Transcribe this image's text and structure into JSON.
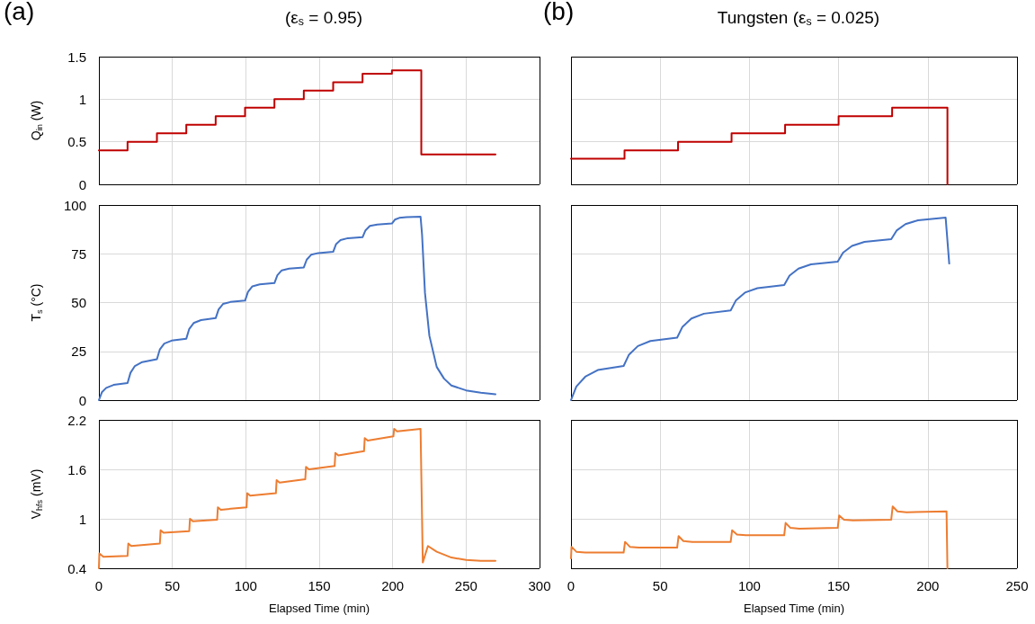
{
  "chart_data": [
    {
      "type": "step",
      "title": "(ε$_{s}$ = 0.95)",
      "annotations": [
        "(a)"
      ],
      "ylabel": "Q$_{in}$ (W)",
      "xlim": [
        0,
        300
      ],
      "xticks": [
        0,
        50,
        100,
        150,
        200,
        250,
        300
      ],
      "ylim": [
        0,
        1.5
      ],
      "yticks": [
        0,
        0.5,
        1,
        1.5
      ],
      "grid": true,
      "tick_labels": "y",
      "marker": "none",
      "series": [
        {
          "color": "#c00000",
          "x": [
            0,
            19.5,
            39.5,
            59.5,
            79.5,
            99.5,
            119.5,
            139.5,
            159.5,
            179.5,
            199.5,
            219.5,
            270
          ],
          "values": [
            0.4,
            0.5,
            0.6,
            0.7,
            0.8,
            0.9,
            1.0,
            1.1,
            1.2,
            1.3,
            1.34,
            0.35,
            0.35
          ]
        }
      ]
    },
    {
      "type": "step",
      "title": "Tungsten (ε$_{s}$ = 0.025)",
      "annotations": [
        "(b)"
      ],
      "xlim": [
        0,
        250
      ],
      "xticks": [
        0,
        50,
        100,
        150,
        200,
        250
      ],
      "ylim": [
        0,
        1.5
      ],
      "yticks": [
        0,
        0.5,
        1,
        1.5
      ],
      "grid": true,
      "tick_labels": false,
      "marker": "none",
      "series": [
        {
          "color": "#c00000",
          "x": [
            0,
            30,
            60,
            90,
            120,
            150,
            180,
            211
          ],
          "values": [
            0.3,
            0.4,
            0.5,
            0.6,
            0.7,
            0.8,
            0.9,
            0
          ]
        }
      ]
    },
    {
      "type": "line",
      "ylabel": "T$_{s}$ (°C)",
      "xlim": [
        0,
        300
      ],
      "xticks": [
        0,
        50,
        100,
        150,
        200,
        250,
        300
      ],
      "ylim": [
        0,
        100
      ],
      "yticks": [
        0,
        25,
        50,
        75,
        100
      ],
      "grid": true,
      "tick_labels": "y",
      "marker": "none",
      "series": [
        {
          "color": "#4472c4",
          "x": [
            0,
            2,
            5,
            10,
            19.5,
            21.5,
            24.5,
            29.5,
            39.5,
            41.5,
            44.5,
            49.5,
            59.5,
            61.5,
            64.5,
            69.5,
            79.5,
            81.5,
            84.5,
            89.5,
            99.5,
            101.5,
            104.5,
            109.5,
            119.5,
            121.5,
            124.5,
            129.5,
            139.5,
            141.5,
            144.5,
            149.5,
            159.5,
            161.5,
            164.5,
            169.5,
            179.5,
            181.5,
            184.5,
            189.5,
            199.5,
            201.5,
            204.5,
            209.5,
            219,
            220,
            222,
            225,
            230,
            235,
            240,
            250,
            260,
            270
          ],
          "values": [
            0,
            4,
            6.3,
            7.8,
            8.8,
            14,
            17.5,
            19.5,
            21,
            26,
            29,
            30.5,
            31.5,
            36.5,
            39.5,
            41,
            42,
            46.5,
            49.3,
            50.3,
            51,
            55.5,
            58.3,
            59.3,
            60,
            64,
            66.5,
            67.4,
            68,
            72,
            74.5,
            75.4,
            76,
            80,
            82,
            83,
            83.5,
            87,
            89.3,
            90,
            90.5,
            92.5,
            93.4,
            93.8,
            94,
            85,
            55,
            33,
            17,
            11,
            7.5,
            5,
            3.8,
            3
          ]
        }
      ]
    },
    {
      "type": "line",
      "xlim": [
        0,
        250
      ],
      "xticks": [
        0,
        50,
        100,
        150,
        200,
        250
      ],
      "ylim": [
        0,
        100
      ],
      "yticks": [
        0,
        25,
        50,
        75,
        100
      ],
      "grid": true,
      "tick_labels": false,
      "marker": "none",
      "series": [
        {
          "color": "#4472c4",
          "x": [
            0,
            3,
            8,
            15,
            29.5,
            32.5,
            37.5,
            44.5,
            59.5,
            62.5,
            67.5,
            74.5,
            89.5,
            92.5,
            97.5,
            104.5,
            119.5,
            122.5,
            127.5,
            134.5,
            149.5,
            152.5,
            157.5,
            164.5,
            179.5,
            182.5,
            187.5,
            194.5,
            210,
            212
          ],
          "values": [
            0,
            7,
            12,
            15.4,
            17.5,
            23.3,
            27.7,
            30.3,
            32,
            37.6,
            41.8,
            44.3,
            46,
            51.2,
            55.1,
            57.4,
            59,
            63.8,
            67.4,
            69.6,
            71,
            75.6,
            79,
            81.1,
            82.5,
            86.9,
            90.2,
            92.2,
            93.5,
            70
          ]
        }
      ]
    },
    {
      "type": "line",
      "xlabel": "Elapsed Time (min)",
      "ylabel": "V$_{hfs}$ (mV)",
      "xlim": [
        0,
        300
      ],
      "xticks": [
        0,
        50,
        100,
        150,
        200,
        250,
        300
      ],
      "ylim": [
        0.4,
        2.2
      ],
      "yticks": [
        0.4,
        1,
        1.6,
        2.2
      ],
      "grid": true,
      "marker": "none",
      "series": [
        {
          "color": "#ed7d31",
          "x": [
            0,
            0.3,
            3,
            19.5,
            20,
            22,
            41.5,
            42,
            44,
            61.5,
            62,
            64,
            80.5,
            81,
            83,
            100.5,
            101,
            103,
            120.5,
            121,
            123,
            140.5,
            141,
            143,
            160.5,
            161,
            163,
            180.5,
            181,
            183,
            200.5,
            201,
            203,
            219,
            220.5,
            224,
            230,
            240,
            250,
            260,
            270
          ],
          "values": [
            0.4,
            0.58,
            0.54,
            0.55,
            0.7,
            0.67,
            0.7,
            0.86,
            0.83,
            0.85,
            1.0,
            0.97,
            0.99,
            1.14,
            1.11,
            1.14,
            1.31,
            1.28,
            1.31,
            1.47,
            1.44,
            1.48,
            1.63,
            1.6,
            1.64,
            1.8,
            1.77,
            1.82,
            1.98,
            1.95,
            2.0,
            2.09,
            2.06,
            2.09,
            0.47,
            0.67,
            0.6,
            0.53,
            0.5,
            0.49,
            0.49
          ]
        }
      ]
    },
    {
      "type": "line",
      "xlabel": "Elapsed Time (min)",
      "xlim": [
        0,
        250
      ],
      "xticks": [
        0,
        50,
        100,
        150,
        200,
        250
      ],
      "ylim": [
        0.4,
        2.2
      ],
      "yticks": [
        0.4,
        1,
        1.6,
        2.2
      ],
      "grid": true,
      "tick_labels": "x",
      "marker": "none",
      "series": [
        {
          "color": "#ed7d31",
          "x": [
            0,
            0.3,
            3,
            8,
            29.5,
            30.3,
            33,
            38,
            59.5,
            60.3,
            63,
            68,
            89.5,
            90.3,
            93,
            98,
            119.5,
            120.3,
            123,
            128,
            149.5,
            150.3,
            153,
            158,
            179.5,
            180.3,
            183,
            188,
            210.5,
            211
          ],
          "values": [
            0.52,
            0.66,
            0.6,
            0.59,
            0.59,
            0.72,
            0.66,
            0.65,
            0.65,
            0.79,
            0.73,
            0.72,
            0.72,
            0.86,
            0.81,
            0.8,
            0.8,
            0.95,
            0.89,
            0.88,
            0.89,
            1.04,
            0.99,
            0.98,
            0.99,
            1.15,
            1.09,
            1.08,
            1.09,
            0.4
          ]
        }
      ]
    }
  ]
}
